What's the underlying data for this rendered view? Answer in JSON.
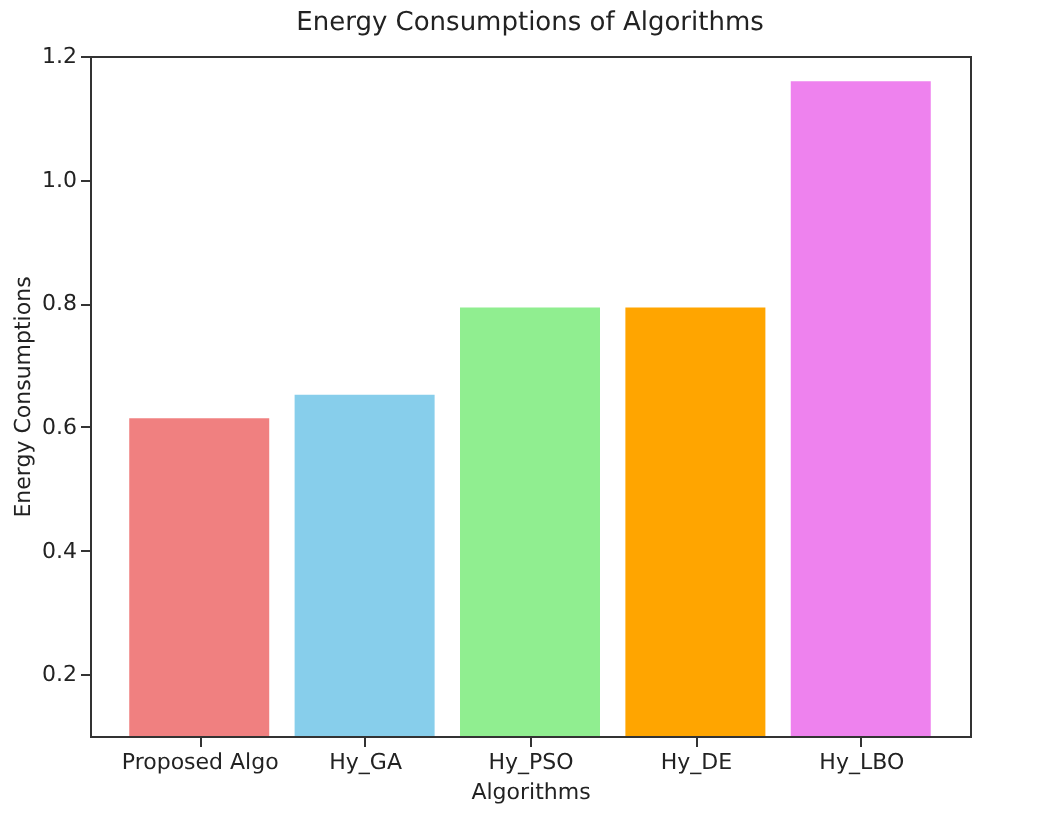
{
  "chart_data": {
    "type": "bar",
    "title": "Energy Consumptions of Algorithms",
    "xlabel": "Algorithms",
    "ylabel": "Energy Consumptions",
    "categories": [
      "Proposed Algo",
      "Hy_GA",
      "Hy_PSO",
      "Hy_DE",
      "Hy_LBO"
    ],
    "values": [
      0.614,
      0.652,
      0.793,
      0.793,
      1.159
    ],
    "colors": [
      "#f08080",
      "#87ceeb",
      "#90ee90",
      "#ffa500",
      "#ee82ee"
    ],
    "ylim": [
      0.1,
      1.2
    ],
    "yticks": [
      0.2,
      0.4,
      0.6,
      0.8,
      {
        "value": 1,
        "label": "1.0"
      },
      1.2
    ],
    "grid": false
  }
}
